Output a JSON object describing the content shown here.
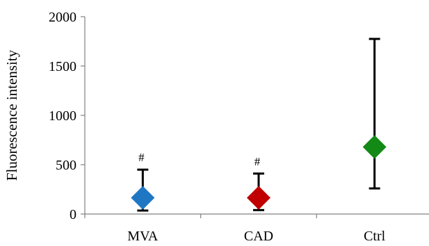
{
  "chart_data": {
    "type": "scatter",
    "title": "",
    "xlabel": "",
    "ylabel": "Fluorescence intensity",
    "ylim": [
      0,
      2000
    ],
    "yticks": [
      0,
      500,
      1000,
      1500,
      2000
    ],
    "categories": [
      "MVA",
      "CAD",
      "Ctrl"
    ],
    "series": [
      {
        "values": [
          165,
          165,
          680
        ],
        "error_low": [
          35,
          40,
          260
        ],
        "error_high": [
          450,
          410,
          1775
        ],
        "colors": [
          "#1f77c4",
          "#c00000",
          "#138a16"
        ],
        "marker": "diamond"
      }
    ],
    "annotations": [
      "#",
      "#",
      ""
    ],
    "grid": false,
    "legend": "none"
  }
}
